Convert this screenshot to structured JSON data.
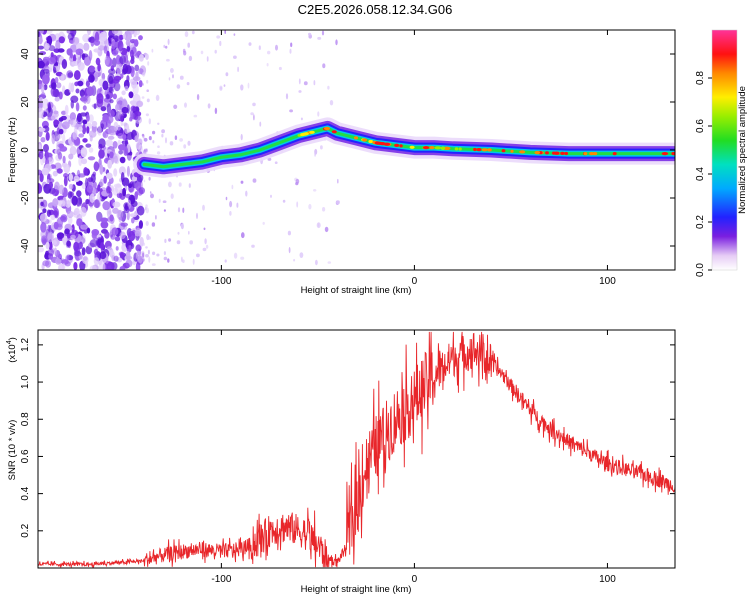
{
  "title": "C2E5.2026.058.12.34.G06",
  "chart_data": [
    {
      "type": "heatmap",
      "name": "spectrogram",
      "xlabel": "Height of straight line (km)",
      "ylabel": "Frequency (Hz)",
      "xlim": [
        -195,
        135
      ],
      "ylim": [
        -50,
        50
      ],
      "xticks": [
        -100,
        0,
        100
      ],
      "yticks": [
        -40,
        -20,
        0,
        20,
        40
      ],
      "ridge": {
        "x": [
          -140,
          -130,
          -120,
          -110,
          -100,
          -90,
          -80,
          -70,
          -60,
          -50,
          -45,
          -40,
          -30,
          -20,
          -10,
          0,
          10,
          20,
          40,
          60,
          80,
          100,
          135
        ],
        "y": [
          -6,
          -7,
          -6,
          -5,
          -3,
          -2,
          0,
          3,
          6,
          8,
          9,
          7,
          5,
          3,
          2,
          1,
          1,
          0.5,
          0,
          -1,
          -1.5,
          -1.5,
          -1.5
        ]
      }
    },
    {
      "type": "colorbar",
      "label": "Normalized spectral amplitude",
      "range": [
        0,
        1
      ],
      "ticks": [
        0.0,
        0.2,
        0.4,
        0.6,
        0.8
      ],
      "tick_labels": [
        "0.0",
        "0.2",
        "0.4",
        "0.6",
        "0.8"
      ]
    },
    {
      "type": "line",
      "name": "snr",
      "xlabel": "Height of straight line (km)",
      "ylabel": "SNR (10 * v/v)",
      "scale_label": "(x10",
      "scale_exp": "4",
      "scale_close": ")",
      "xlim": [
        -195,
        135
      ],
      "ylim": [
        0,
        1.28
      ],
      "xticks": [
        -100,
        0,
        100
      ],
      "yticks": [
        0.2,
        0.4,
        0.6,
        0.8,
        1.0,
        1.2
      ],
      "color": "#e8262a",
      "series": [
        {
          "name": "SNR",
          "x": [
            -195,
            -170,
            -150,
            -140,
            -130,
            -120,
            -110,
            -100,
            -90,
            -80,
            -75,
            -70,
            -65,
            -60,
            -55,
            -50,
            -45,
            -40,
            -35,
            -30,
            -25,
            -20,
            -15,
            -10,
            -5,
            0,
            5,
            10,
            15,
            20,
            25,
            30,
            35,
            40,
            45,
            50,
            55,
            60,
            70,
            80,
            90,
            100,
            110,
            120,
            135
          ],
          "y": [
            0.02,
            0.02,
            0.03,
            0.04,
            0.07,
            0.09,
            0.1,
            0.09,
            0.1,
            0.15,
            0.2,
            0.22,
            0.22,
            0.2,
            0.18,
            0.12,
            0.05,
            0.03,
            0.12,
            0.35,
            0.55,
            0.65,
            0.72,
            0.8,
            0.85,
            0.9,
            0.98,
            1.03,
            1.08,
            1.13,
            1.15,
            1.18,
            1.15,
            1.1,
            1.05,
            0.98,
            0.92,
            0.85,
            0.75,
            0.68,
            0.62,
            0.56,
            0.53,
            0.5,
            0.44
          ]
        }
      ]
    }
  ]
}
